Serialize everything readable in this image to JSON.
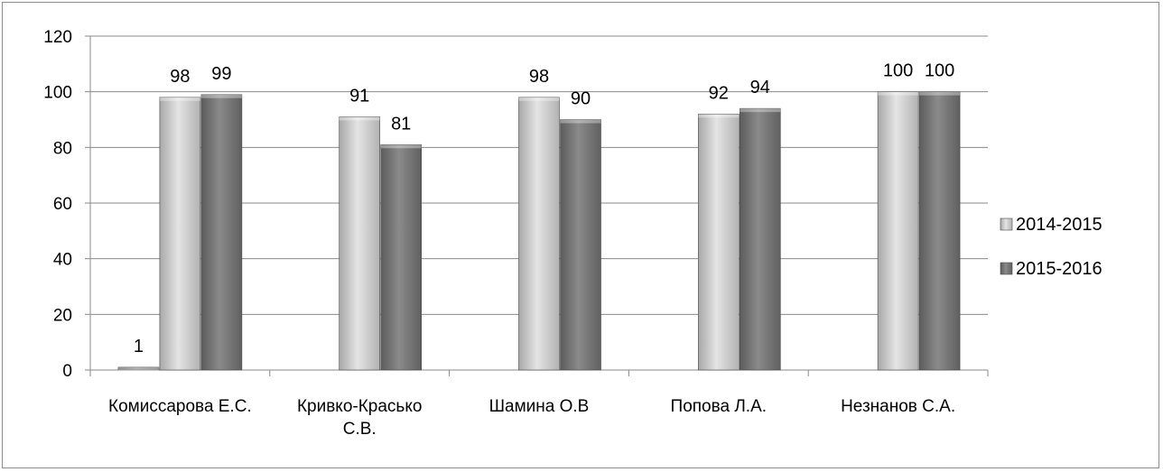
{
  "chart_data": {
    "type": "bar",
    "title": "",
    "xlabel": "",
    "ylabel": "",
    "categories": [
      [
        "Комиссарова Е.С."
      ],
      [
        "Кривко-Красько",
        "С.В."
      ],
      [
        "Шамина О.В"
      ],
      [
        "Попова Л.А."
      ],
      [
        "Незнанов С.А."
      ]
    ],
    "ylim": [
      0,
      120
    ],
    "yticks": [
      0,
      20,
      40,
      60,
      80,
      100,
      120
    ],
    "grid": true,
    "legend_position": "right",
    "series": [
      {
        "name": "",
        "values": [
          1,
          null,
          null,
          null,
          null
        ],
        "color": "#7a7a7a"
      },
      {
        "name": "2014-2015",
        "values": [
          98,
          91,
          98,
          92,
          100
        ],
        "color": "#c4c4c4"
      },
      {
        "name": "2015-2016",
        "values": [
          99,
          81,
          90,
          94,
          100
        ],
        "color": "#6e6e6e"
      }
    ]
  }
}
